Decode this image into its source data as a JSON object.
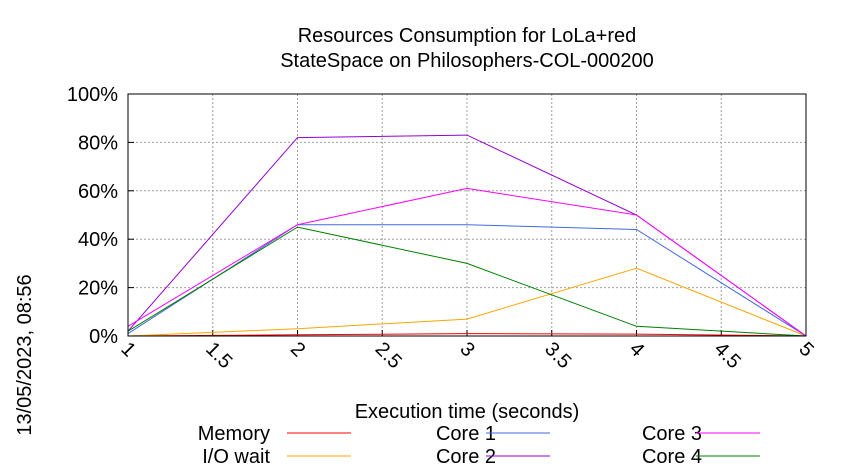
{
  "chart_data": {
    "type": "line",
    "title_line1": "Resources Consumption for LoLa+red",
    "title_line2": "StateSpace on Philosophers-COL-000200",
    "xlabel": "Execution time (seconds)",
    "side_label": "13/05/2023, 08:56",
    "xlim": [
      1,
      5
    ],
    "ylim": [
      0,
      100
    ],
    "x_ticks": [
      1,
      1.5,
      2,
      2.5,
      3,
      3.5,
      4,
      4.5,
      5
    ],
    "x_tick_labels": [
      "1",
      "1.5",
      "2",
      "2.5",
      "3",
      "3.5",
      "4",
      "4.5",
      "5"
    ],
    "y_ticks": [
      0,
      20,
      40,
      60,
      80,
      100
    ],
    "y_tick_labels": [
      "0%",
      "20%",
      "40%",
      "60%",
      "80%",
      "100%"
    ],
    "grid": true,
    "legend_position": "bottom",
    "x": [
      1,
      2,
      3,
      4,
      5
    ],
    "series": [
      {
        "name": "Memory",
        "color": "#ff0000",
        "values": [
          0,
          0.5,
          1,
          0.8,
          0
        ]
      },
      {
        "name": "I/O wait",
        "color": "#ffa500",
        "values": [
          0,
          3,
          7,
          28,
          0
        ]
      },
      {
        "name": "Core 1",
        "color": "#4169e1",
        "values": [
          1,
          46,
          46,
          44,
          0
        ]
      },
      {
        "name": "Core 2",
        "color": "#9400d3",
        "values": [
          2,
          82,
          83,
          50,
          0
        ]
      },
      {
        "name": "Core 3",
        "color": "#ff00ff",
        "values": [
          4,
          46,
          61,
          50,
          0
        ]
      },
      {
        "name": "Core 4",
        "color": "#008000",
        "values": [
          2,
          45,
          30,
          4,
          0
        ]
      }
    ]
  }
}
